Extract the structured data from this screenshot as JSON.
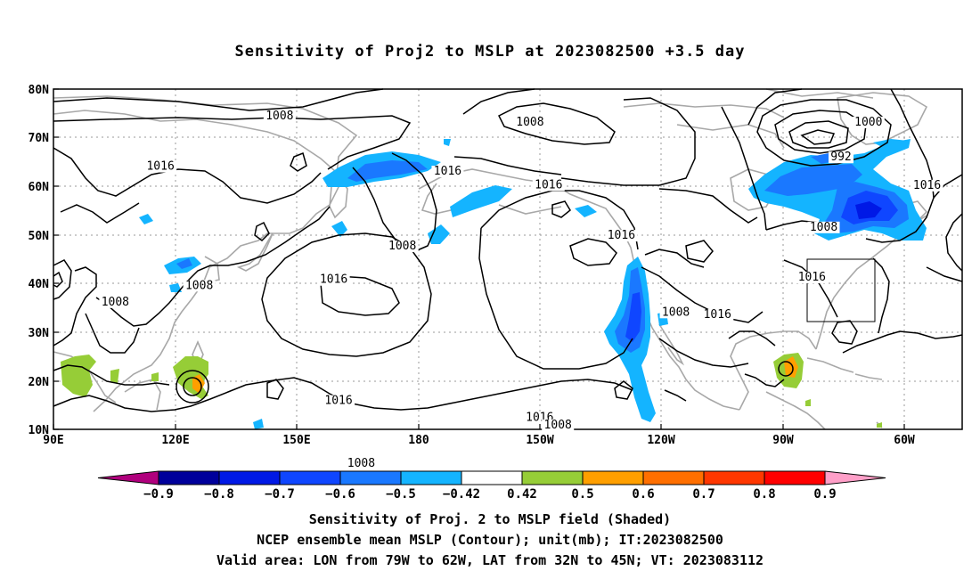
{
  "title": "Sensitivity of Proj2 to MSLP at 2023082500 +3.5 day",
  "y_axis_labels": [
    "80N",
    "70N",
    "60N",
    "50N",
    "40N",
    "30N",
    "20N",
    "10N"
  ],
  "x_axis_labels": [
    "90E",
    "120E",
    "150E",
    "180",
    "150W",
    "120W",
    "90W",
    "60W"
  ],
  "contour_labels": [
    {
      "text": "1008",
      "lon": 146.0,
      "lat": 73.8
    },
    {
      "text": "1016",
      "lon": 116.5,
      "lat": 63.4
    },
    {
      "text": "1008",
      "lon": 208.0,
      "lat": 72.5
    },
    {
      "text": "1016",
      "lon": 187.6,
      "lat": 62.4
    },
    {
      "text": "1016",
      "lon": 212.6,
      "lat": 59.6
    },
    {
      "text": "1000",
      "lon": 291.8,
      "lat": 72.5
    },
    {
      "text": "992",
      "lon": 285.0,
      "lat": 65.3
    },
    {
      "text": "1016",
      "lon": 306.3,
      "lat": 59.5
    },
    {
      "text": "1008",
      "lon": 280.7,
      "lat": 50.9
    },
    {
      "text": "1016",
      "lon": 230.6,
      "lat": 49.2
    },
    {
      "text": "1008",
      "lon": 176.4,
      "lat": 47.0
    },
    {
      "text": "1016",
      "lon": 159.4,
      "lat": 40.1
    },
    {
      "text": "1016",
      "lon": 277.8,
      "lat": 40.6
    },
    {
      "text": "1008",
      "lon": 126.1,
      "lat": 38.9
    },
    {
      "text": "1008",
      "lon": 105.3,
      "lat": 35.5
    },
    {
      "text": "1008",
      "lon": 244.1,
      "lat": 33.4
    },
    {
      "text": "1016",
      "lon": 254.4,
      "lat": 32.9
    },
    {
      "text": "1016",
      "lon": 160.6,
      "lat": 15.2
    },
    {
      "text": "1016",
      "lon": 210.4,
      "lat": 11.7
    },
    {
      "text": "1008",
      "lon": 166.2,
      "lat": 2.3
    },
    {
      "text": "1008",
      "lon": 214.9,
      "lat": 10.2
    }
  ],
  "colorbar": {
    "labels": [
      "-0.9",
      "-0.8",
      "-0.7",
      "-0.6",
      "-0.5",
      "-0.42",
      "0.42",
      "0.5",
      "0.6",
      "0.7",
      "0.8",
      "0.9"
    ],
    "colors": [
      "#b0007d",
      "#00009b",
      "#0019e6",
      "#0f46ff",
      "#1a78ff",
      "#14b4ff",
      "#ffffff",
      "#96cd37",
      "#ff9f00",
      "#ff6f00",
      "#ff3700",
      "#ff0000",
      "#ff9fc8"
    ]
  },
  "valid_area": {
    "lon_min": -79,
    "lon_max": -62,
    "lat_min": 32,
    "lat_max": 45
  },
  "captions": {
    "line1": "Sensitivity of Proj. 2 to MSLP field (Shaded)",
    "line2": "NCEP ensemble mean MSLP (Contour); unit(mb); IT:2023082500",
    "line3": "Valid area: LON from 79W to 62W, LAT from 32N to 45N; VT: 2023083112"
  }
}
